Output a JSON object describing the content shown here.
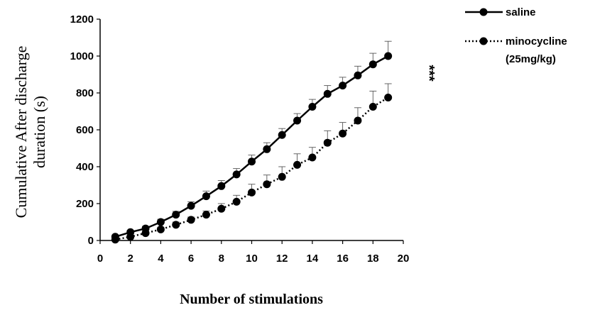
{
  "chart_data": {
    "type": "line",
    "xlabel": "Number of stimulations",
    "ylabel_line1": "Cumulative After discharge",
    "ylabel_line2": "duration (s)",
    "xlim": [
      0,
      20
    ],
    "ylim": [
      0,
      1200
    ],
    "x_ticks": [
      "0",
      "2",
      "4",
      "6",
      "8",
      "10",
      "12",
      "14",
      "16",
      "18",
      "20"
    ],
    "y_ticks": [
      "0",
      "200",
      "400",
      "600",
      "800",
      "1000",
      "1200"
    ],
    "grid": false,
    "legend_position": "top-right",
    "significance": "***",
    "x": [
      1,
      2,
      3,
      4,
      5,
      6,
      7,
      8,
      9,
      10,
      11,
      12,
      13,
      14,
      15,
      16,
      17,
      18,
      19
    ],
    "series": [
      {
        "name": "saline",
        "style": "solid",
        "values": [
          20,
          45,
          65,
          100,
          140,
          188,
          240,
          295,
          358,
          428,
          495,
          572,
          650,
          725,
          795,
          840,
          895,
          955,
          1000
        ],
        "errors": [
          10,
          10,
          12,
          15,
          18,
          22,
          28,
          30,
          32,
          35,
          35,
          35,
          38,
          40,
          45,
          45,
          50,
          60,
          80
        ]
      },
      {
        "name": "minocycline",
        "name_line2": "(25mg/kg)",
        "style": "dotted",
        "values": [
          5,
          20,
          40,
          60,
          85,
          112,
          140,
          172,
          210,
          260,
          305,
          345,
          410,
          450,
          530,
          580,
          650,
          725,
          775
        ],
        "errors": [
          5,
          8,
          10,
          12,
          15,
          15,
          20,
          28,
          35,
          45,
          50,
          55,
          60,
          55,
          65,
          60,
          70,
          85,
          75
        ]
      }
    ]
  }
}
